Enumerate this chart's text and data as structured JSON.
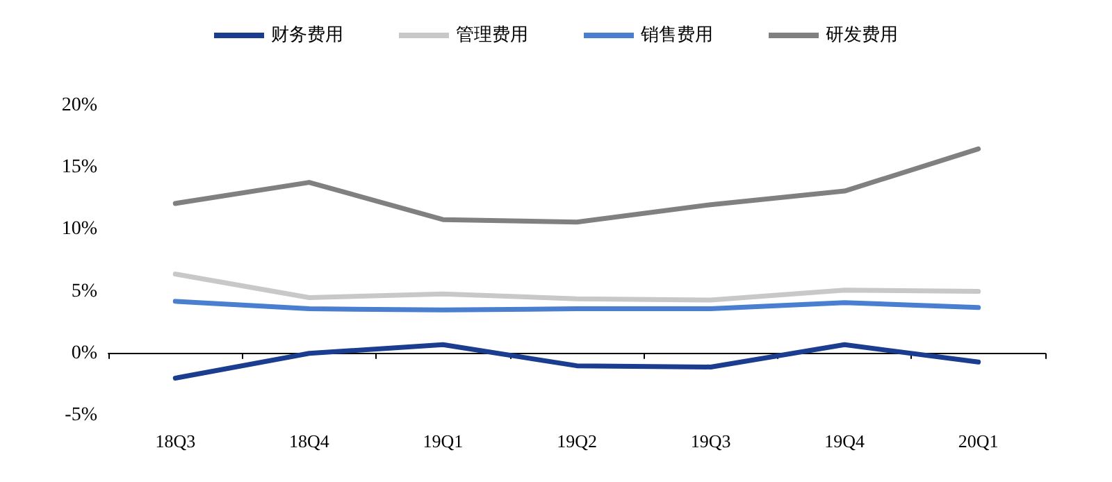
{
  "chart_data": {
    "type": "line",
    "categories": [
      "18Q3",
      "18Q4",
      "19Q1",
      "19Q2",
      "19Q3",
      "19Q4",
      "20Q1"
    ],
    "series": [
      {
        "name": "财务费用",
        "color": "#1a3d8f",
        "values": [
          -2.0,
          0.0,
          0.7,
          -1.0,
          -1.1,
          0.7,
          -0.7
        ]
      },
      {
        "name": "管理费用",
        "color": "#c8c8c8",
        "values": [
          6.4,
          4.5,
          4.8,
          4.4,
          4.3,
          5.1,
          5.0
        ]
      },
      {
        "name": "销售费用",
        "color": "#4a7fd0",
        "values": [
          4.2,
          3.6,
          3.5,
          3.6,
          3.6,
          4.1,
          3.7
        ]
      },
      {
        "name": "研发费用",
        "color": "#808080",
        "values": [
          12.1,
          13.8,
          10.8,
          10.6,
          12.0,
          13.1,
          16.5
        ]
      }
    ],
    "ylim": [
      -5,
      20
    ],
    "yticks": [
      {
        "value": -5,
        "label": "-5%"
      },
      {
        "value": 0,
        "label": "0%"
      },
      {
        "value": 5,
        "label": "5%"
      },
      {
        "value": 10,
        "label": "10%"
      },
      {
        "value": 15,
        "label": "15%"
      },
      {
        "value": 20,
        "label": "20%"
      }
    ],
    "legend": "top",
    "marker": "none",
    "line_style": "solid"
  }
}
